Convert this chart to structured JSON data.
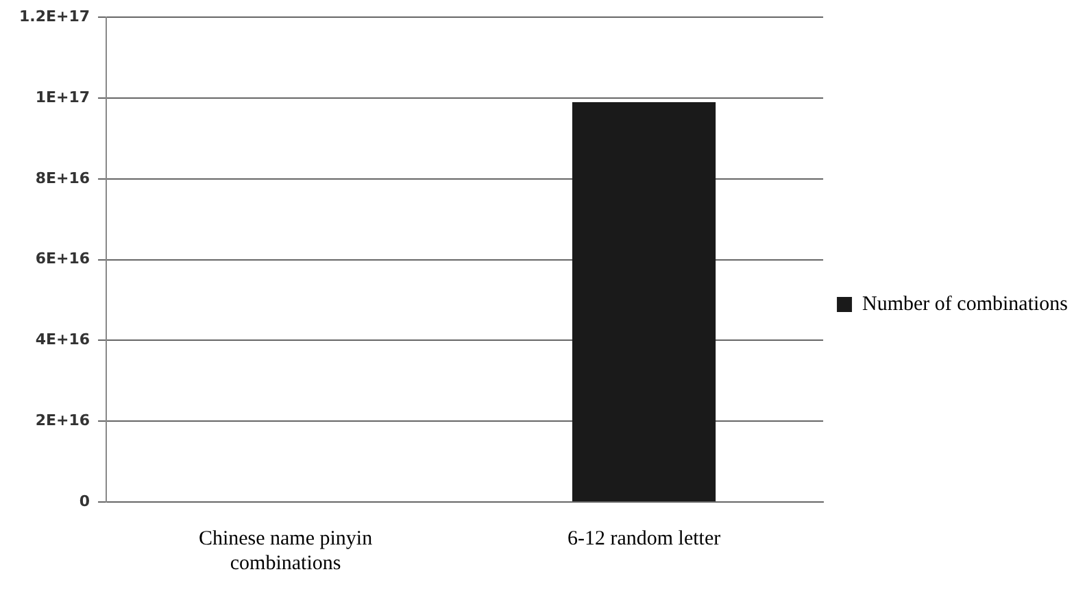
{
  "chart_data": {
    "type": "bar",
    "categories": [
      "Chinese name pinyin combinations",
      "6-12 random letter"
    ],
    "series": [
      {
        "name": "Number of combinations",
        "color": "#1a1a1a",
        "values": [
          0,
          9.9e+16
        ]
      }
    ],
    "ylim": [
      0,
      1.2e+17
    ],
    "yticks": [
      {
        "value": 0,
        "label": "0"
      },
      {
        "value": 2e+16,
        "label": "2E+16"
      },
      {
        "value": 4e+16,
        "label": "4E+16"
      },
      {
        "value": 6e+16,
        "label": "6E+16"
      },
      {
        "value": 8e+16,
        "label": "8E+16"
      },
      {
        "value": 1e+17,
        "label": "1E+17"
      },
      {
        "value": 1.2e+17,
        "label": "1.2E+17"
      }
    ],
    "grid": "y",
    "legend": "right"
  }
}
